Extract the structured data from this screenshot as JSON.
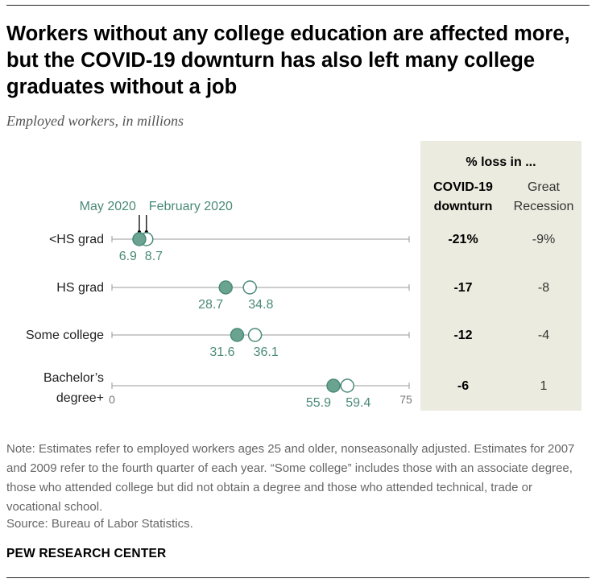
{
  "title": "Workers without any college education are affected more, but the COVID-19 downturn has also left many college graduates without a job",
  "subtitle": "Employed workers, in millions",
  "note": "Note: Estimates refer to employed workers ages 25 and older, nonseasonally adjusted. Estimates for 2007 and 2009 refer to the fourth quarter of each year. “Some college” includes those with an associate degree, those who attended college but did not obtain a degree and those who attended technical, trade or vocational school.",
  "source": "Source: Bureau of Labor Statistics.",
  "brand": "PEW RESEARCH CENTER",
  "colors": {
    "accent": "#4a8a78",
    "filled_dot": "#6ba391",
    "panel_bg": "#ecebdf",
    "axis": "#999999"
  },
  "chart_data": {
    "type": "dot",
    "xlim": [
      0,
      75
    ],
    "x_tick_labels": [
      "0",
      "75"
    ],
    "categories": [
      "<HS grad",
      "HS grad",
      "Some college",
      "Bachelor’s degree+"
    ],
    "series": [
      {
        "name": "May 2020",
        "values": [
          6.9,
          28.7,
          31.6,
          55.9
        ],
        "labels": [
          "6.9",
          "28.7",
          "31.6",
          "55.9"
        ],
        "style": "filled"
      },
      {
        "name": "February 2020",
        "values": [
          8.7,
          34.8,
          36.1,
          59.4
        ],
        "labels": [
          "8.7",
          "34.8",
          "36.1",
          "59.4"
        ],
        "style": "open"
      }
    ],
    "table": {
      "header": "% loss in ...",
      "columns": [
        "COVID-19 downturn",
        "Great Recession"
      ],
      "rows": [
        [
          "-21%",
          "-9%"
        ],
        [
          "-17",
          "-8"
        ],
        [
          "-12",
          "-4"
        ],
        [
          "-6",
          "1"
        ]
      ]
    }
  }
}
